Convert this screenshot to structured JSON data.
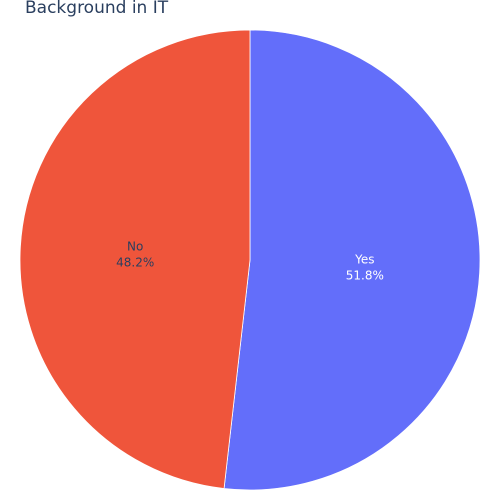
{
  "chart_data": {
    "type": "pie",
    "title": "Background in IT",
    "slices": [
      {
        "label": "Yes",
        "percent_text": "51.8%",
        "value": 51.8,
        "color": "#636efa",
        "text_color": "#ffffff"
      },
      {
        "label": "No",
        "percent_text": "48.2%",
        "value": 48.2,
        "color": "#ef553b",
        "text_color": "#2a3f5f"
      }
    ],
    "direction": "clockwise",
    "start": "top",
    "legend": "none"
  }
}
